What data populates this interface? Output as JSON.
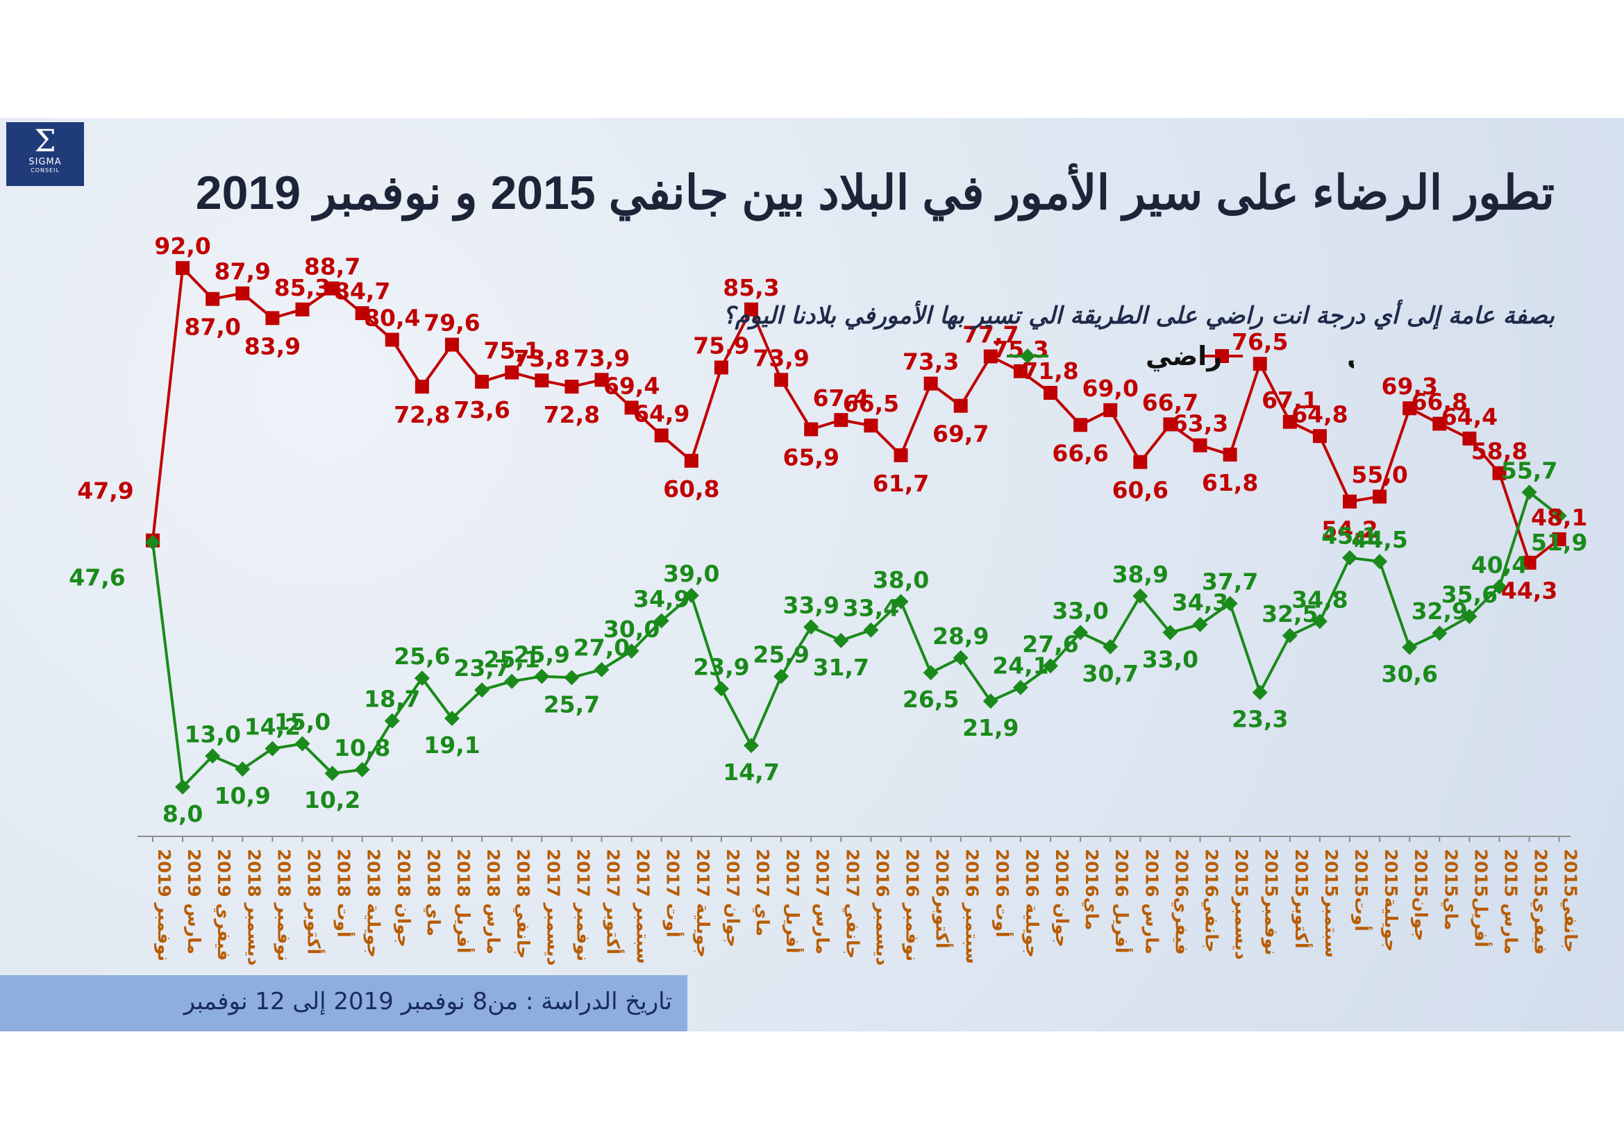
{
  "logo": {
    "text": "SIGMA",
    "subtext": "CONSEIL"
  },
  "title": "تطور الرضاء على سير الأمور في البلاد بين جانفي 2015 و نوفمبر 2019",
  "subtitle": "بصفة عامة إلى أي درجة انت راضي على الطريقة الي تسير بها الأمورفي بلادنا اليوم؟",
  "footer": "تاريخ الدراسة : من8  نوفمبر 2019 إلى 12 نوفمبر",
  "colors": {
    "satisfied": "#1a8a1a",
    "unsatisfied": "#c00000",
    "axis_label": "#b85c00"
  },
  "chart_data": {
    "type": "line",
    "title": "تطور الرضاء على سير الأمور في البلاد بين جانفي 2015 و نوفمبر 2019",
    "legend": "top",
    "categories": [
      "نوفمبر 2019",
      "مارس 2019",
      "فيفري 2019",
      "ديسمبر 2018",
      "نوفمبر 2018",
      "أكتوبر 2018",
      "أوت 2018",
      "جويلية 2018",
      "جوان 2018",
      "ماي 2018",
      "أفريل 2018",
      "مارس 2018",
      "جانفي 2018",
      "ديسمبر 2017",
      "نوفمبر 2017",
      "أكتوبر 2017",
      "سبتمبر 2017",
      "أوت 2017",
      "جويلية 2017",
      "جوان 2017",
      "ماي 2017",
      "أفريل 2017",
      "مارس 2017",
      "جانفي 2017",
      "ديسمبر 2016",
      "نوفمبر 2016",
      "أكتوبر2016",
      "سبتمبر 2016",
      "أوت 2016",
      "جويلية 2016",
      "جوان 2016",
      "ماي2016",
      "أفريل 2016",
      "مارس 2016",
      "فيفري2016",
      "جانفي2016",
      "ديسمبر2015",
      "نوفمبر2015",
      "أكتوبر2015",
      "سبتمبر2015",
      "أوت2015",
      "جويلية2015",
      "جوان2015",
      "ماي2015",
      "أفريل2015",
      "مارس 2015",
      "فيفري2015",
      "جانفي2015"
    ],
    "series": [
      {
        "name": "غير راضي",
        "color": "#c00000",
        "values": [
          47.9,
          92.0,
          87.0,
          87.9,
          83.9,
          85.3,
          88.7,
          84.7,
          80.4,
          72.8,
          79.6,
          73.6,
          75.1,
          73.8,
          72.8,
          73.9,
          69.4,
          64.9,
          60.8,
          75.9,
          85.3,
          73.9,
          65.9,
          67.4,
          66.5,
          61.7,
          73.3,
          69.7,
          77.7,
          75.3,
          71.8,
          66.6,
          69.0,
          60.6,
          66.7,
          63.3,
          61.8,
          76.5,
          67.1,
          64.8,
          54.2,
          55.0,
          69.3,
          66.8,
          64.4,
          58.8,
          44.3,
          48.1
        ]
      },
      {
        "name": "راضي",
        "color": "#1a8a1a",
        "values": [
          47.6,
          8.0,
          13.0,
          10.9,
          14.2,
          15.0,
          10.2,
          10.8,
          18.7,
          25.6,
          19.1,
          23.7,
          25.1,
          25.9,
          25.7,
          27.0,
          30.0,
          34.9,
          39.0,
          23.9,
          14.7,
          25.9,
          33.9,
          31.7,
          33.4,
          38.0,
          26.5,
          28.9,
          21.9,
          24.1,
          27.6,
          33.0,
          30.7,
          38.9,
          33.0,
          34.3,
          37.7,
          23.3,
          32.5,
          34.8,
          45.1,
          44.5,
          30.6,
          32.9,
          35.6,
          40.4,
          55.7,
          51.9
        ]
      }
    ],
    "ylim": [
      0,
      100
    ]
  }
}
